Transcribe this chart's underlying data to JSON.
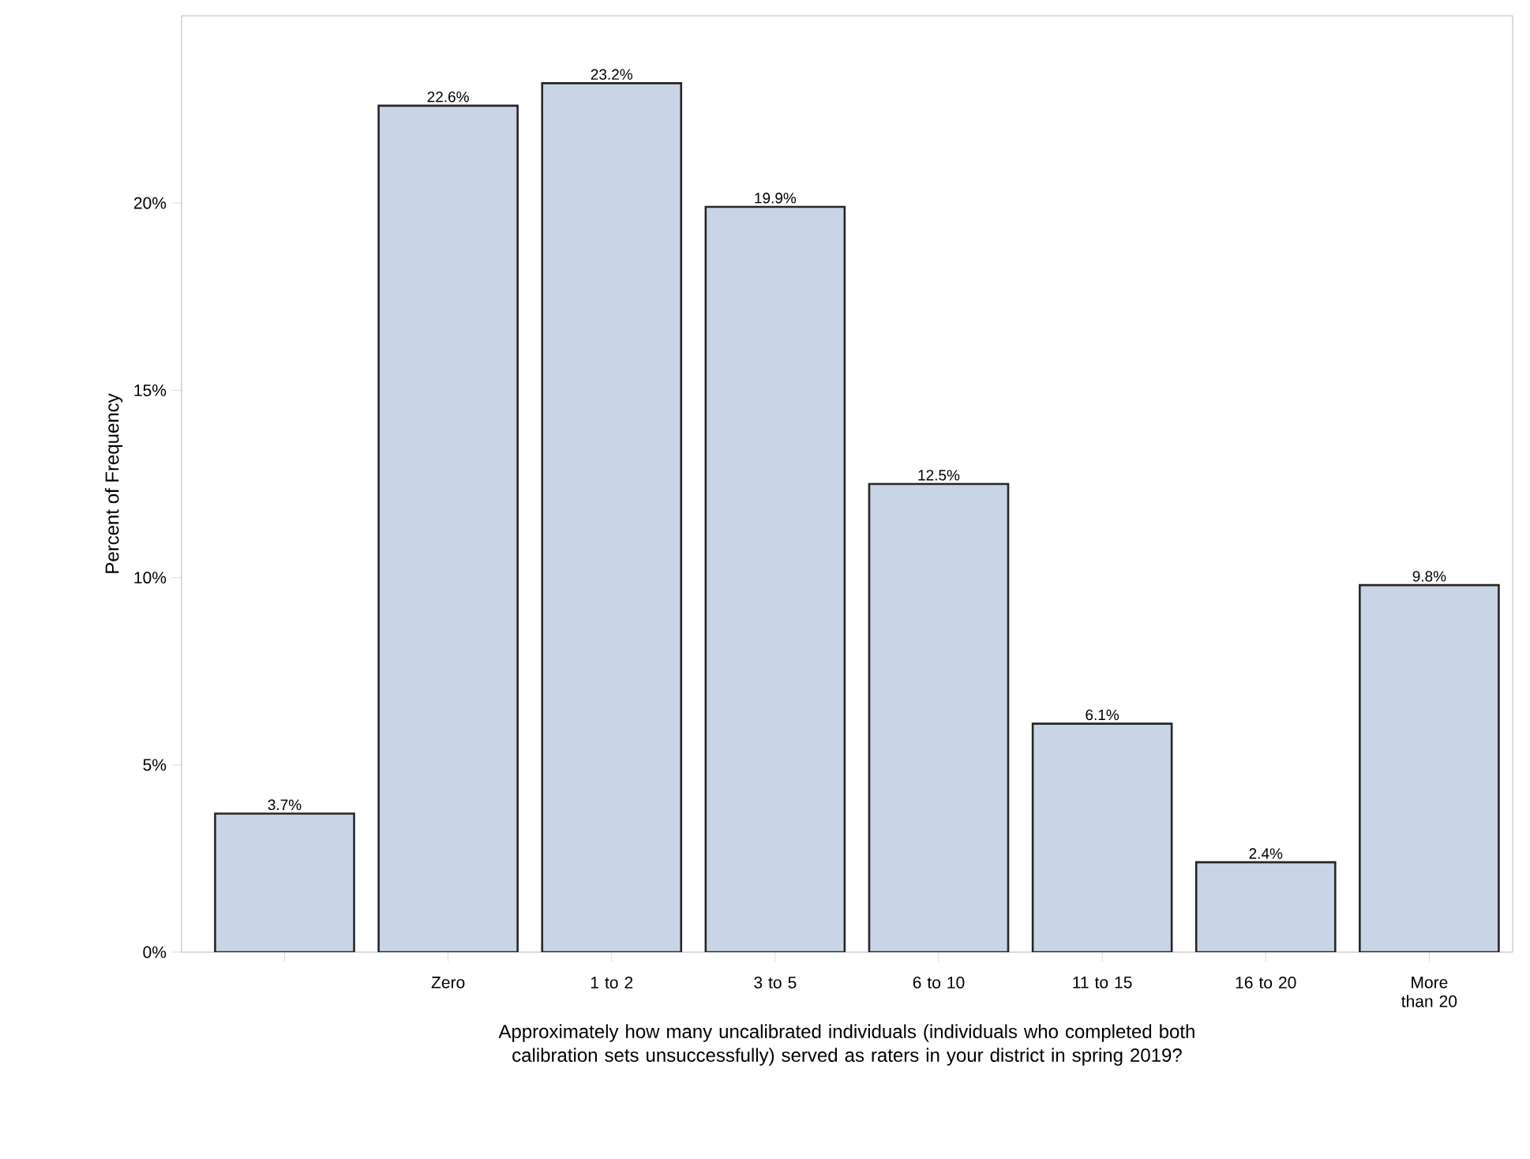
{
  "chart_data": {
    "type": "bar",
    "xlabel": "Approximately how many uncalibrated individuals (individuals who completed both calibration sets unsuccessfully) served as raters in your district in spring 2019?",
    "ylabel": "Percent of Frequency",
    "categories": [
      null,
      "Zero",
      "1 to 2",
      "3 to 5",
      "6 to 10",
      "11 to 15",
      "16 to 20",
      "More than 20"
    ],
    "values": [
      3.7,
      22.6,
      23.2,
      19.9,
      12.5,
      6.1,
      2.4,
      9.8
    ],
    "value_labels": [
      "3.7%",
      "22.6%",
      "23.2%",
      "19.9%",
      "12.5%",
      "6.1%",
      "2.4%",
      "9.8%"
    ],
    "color": "#c9d4e6",
    "ylim": [
      0,
      25
    ],
    "yticks": [
      {
        "value": 0,
        "label": "0%"
      },
      {
        "value": 5,
        "label": "5%"
      },
      {
        "value": 10,
        "label": "10%"
      },
      {
        "value": 15,
        "label": "15%"
      },
      {
        "value": 20,
        "label": "20%"
      }
    ],
    "grid": false
  }
}
